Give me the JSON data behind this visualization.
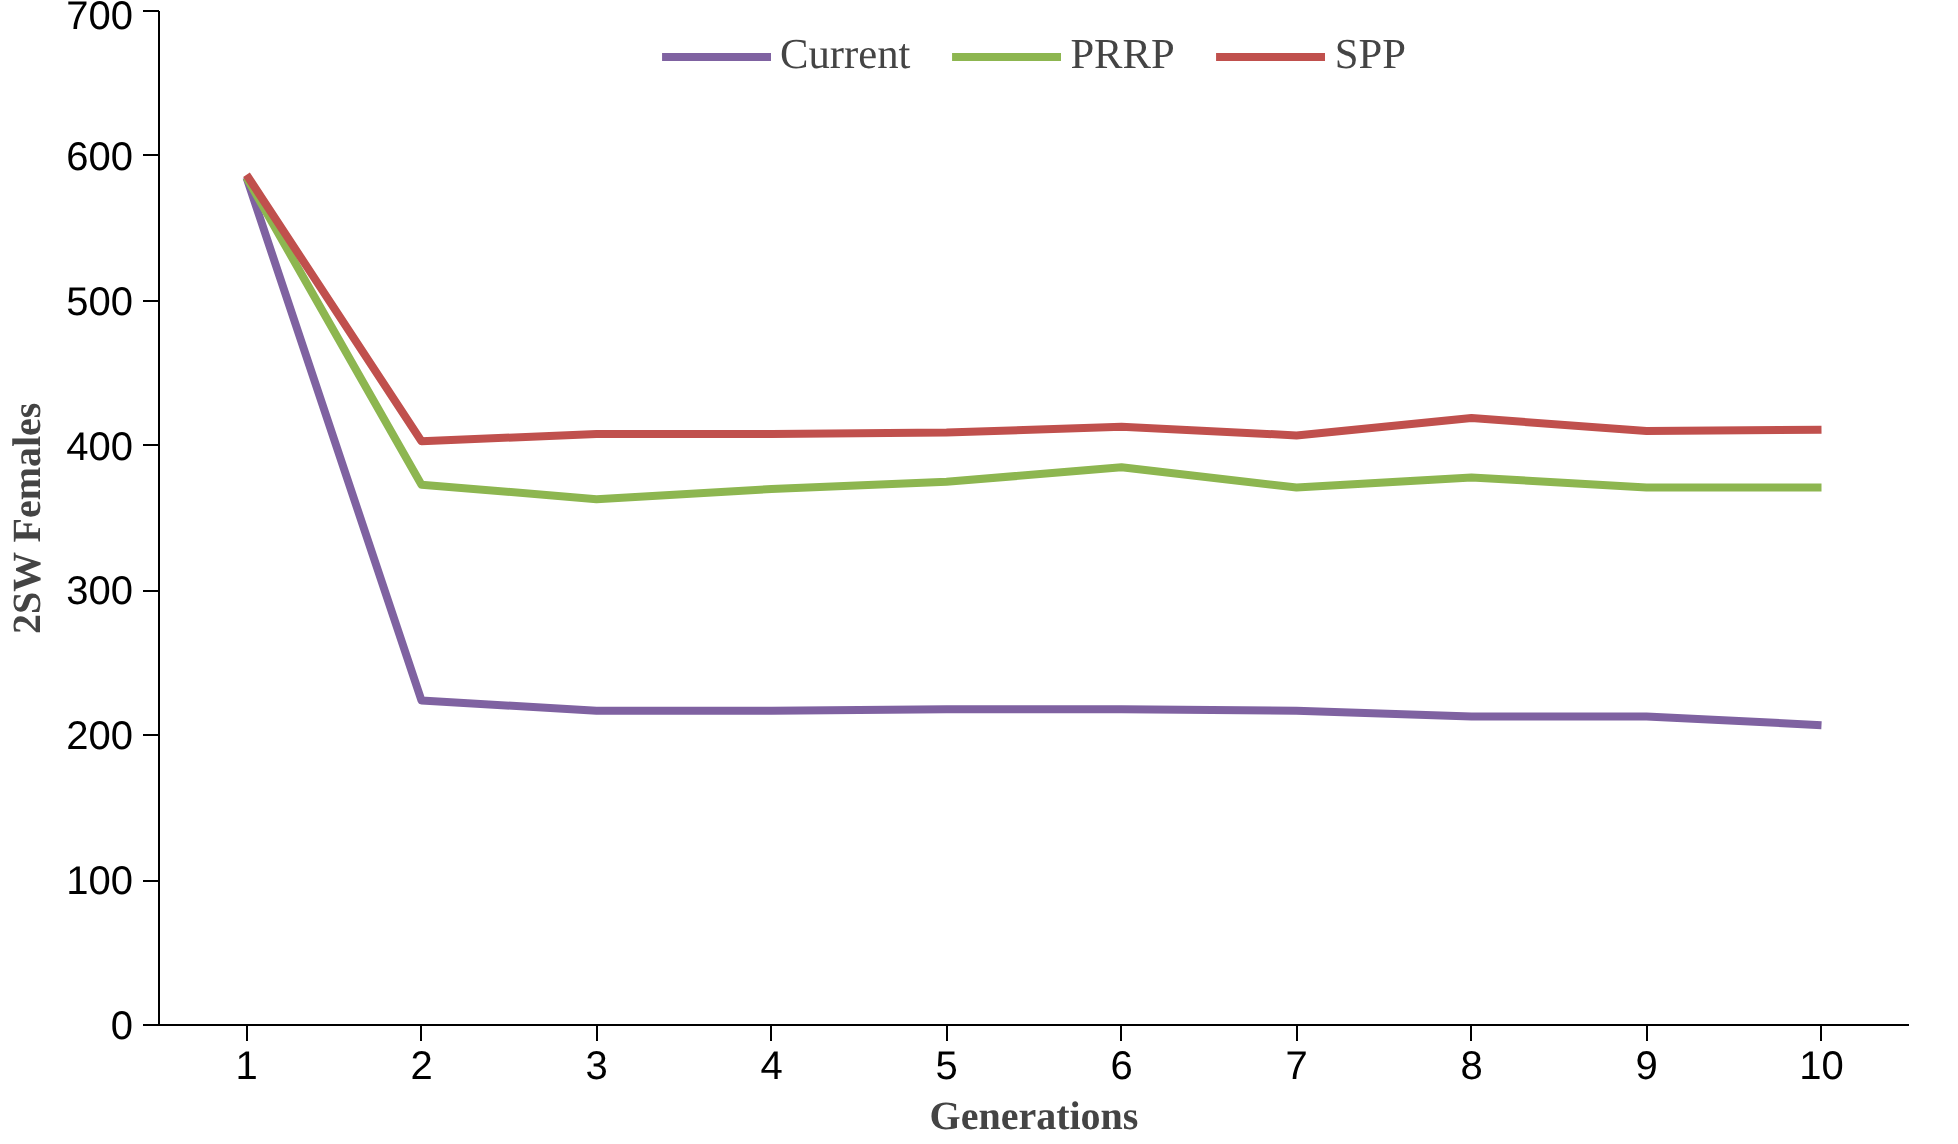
{
  "chart_data": {
    "type": "line",
    "xlabel": "Generations",
    "ylabel": "2SW Females",
    "categories": [
      "1",
      "2",
      "3",
      "4",
      "5",
      "6",
      "7",
      "8",
      "9",
      "10"
    ],
    "series": [
      {
        "name": "Current",
        "color": "#7f62a1",
        "values": [
          585,
          224,
          217,
          217,
          218,
          218,
          217,
          213,
          213,
          207
        ]
      },
      {
        "name": "PRRP",
        "color": "#8db650",
        "values": [
          585,
          373,
          363,
          370,
          375,
          385,
          371,
          378,
          371,
          371
        ]
      },
      {
        "name": "SPP",
        "color": "#c0504d",
        "values": [
          587,
          403,
          408,
          408,
          409,
          413,
          407,
          419,
          410,
          411
        ]
      }
    ],
    "ylim": [
      0,
      700
    ],
    "yticks": [
      0,
      100,
      200,
      300,
      400,
      500,
      600,
      700
    ],
    "grid": false,
    "legend": "top",
    "marker": "none",
    "line_style": "solid"
  }
}
